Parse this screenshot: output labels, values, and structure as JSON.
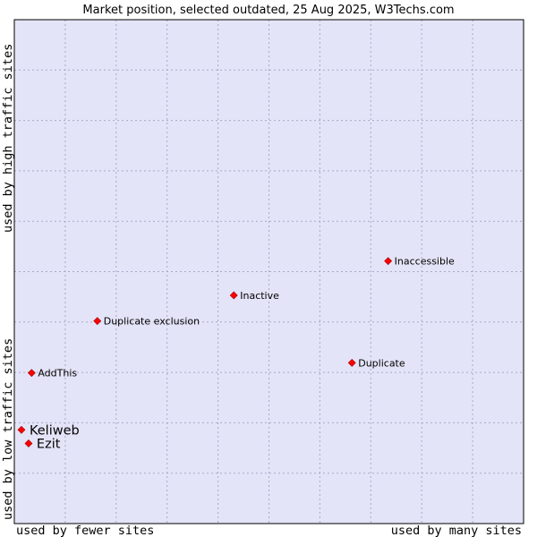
{
  "chart_data": {
    "type": "scatter",
    "title": "Market position, selected outdated, 25 Aug 2025, W3Techs.com",
    "xlabel_left": "used by fewer sites",
    "xlabel_right": "used by many sites",
    "ylabel_bottom": "used by low traffic sites",
    "ylabel_top": "used by high traffic sites",
    "xlim": [
      0,
      100
    ],
    "ylim": [
      0,
      100
    ],
    "grid": true,
    "colors": {
      "plot_bg": "#e4e4f8",
      "point": "#ff0000",
      "grid": "#a8a8c8"
    },
    "points": [
      {
        "label": "Inaccessible",
        "x": 73.4,
        "y": 52.1,
        "highlight": false
      },
      {
        "label": "Inactive",
        "x": 43.1,
        "y": 45.3,
        "highlight": false
      },
      {
        "label": "Duplicate exclusion",
        "x": 16.3,
        "y": 40.2,
        "highlight": false
      },
      {
        "label": "Duplicate",
        "x": 66.3,
        "y": 31.9,
        "highlight": false
      },
      {
        "label": "AddThis",
        "x": 3.4,
        "y": 29.9,
        "highlight": false
      },
      {
        "label": "Keliweb",
        "x": 1.4,
        "y": 18.6,
        "highlight": true
      },
      {
        "label": "Ezit",
        "x": 2.8,
        "y": 15.9,
        "highlight": true
      }
    ]
  }
}
